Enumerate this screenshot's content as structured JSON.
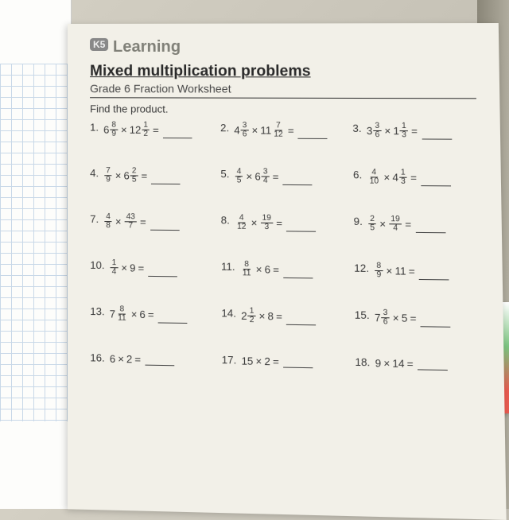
{
  "logo": {
    "badge": "K5",
    "text": "Learning"
  },
  "title": "Mixed multiplication problems",
  "subtitle": "Grade 6 Fraction Worksheet",
  "instruction": "Find the product.",
  "problems": [
    {
      "n": "1.",
      "a_whole": "6",
      "a_num": "8",
      "a_den": "9",
      "b_whole": "12",
      "b_num": "1",
      "b_den": "2"
    },
    {
      "n": "2.",
      "a_whole": "4",
      "a_num": "3",
      "a_den": "6",
      "b_whole": "11",
      "b_num": "7",
      "b_den": "12"
    },
    {
      "n": "3.",
      "a_whole": "3",
      "a_num": "3",
      "a_den": "6",
      "b_whole": "1",
      "b_num": "1",
      "b_den": "3"
    },
    {
      "n": "4.",
      "a_whole": "",
      "a_num": "7",
      "a_den": "9",
      "b_whole": "6",
      "b_num": "2",
      "b_den": "5"
    },
    {
      "n": "5.",
      "a_whole": "",
      "a_num": "4",
      "a_den": "5",
      "b_whole": "6",
      "b_num": "3",
      "b_den": "4"
    },
    {
      "n": "6.",
      "a_whole": "",
      "a_num": "4",
      "a_den": "10",
      "b_whole": "4",
      "b_num": "1",
      "b_den": "3"
    },
    {
      "n": "7.",
      "a_whole": "",
      "a_num": "4",
      "a_den": "8",
      "b_whole": "",
      "b_num": "43",
      "b_den": "7"
    },
    {
      "n": "8.",
      "a_whole": "",
      "a_num": "4",
      "a_den": "12",
      "b_whole": "",
      "b_num": "19",
      "b_den": "3"
    },
    {
      "n": "9.",
      "a_whole": "",
      "a_num": "2",
      "a_den": "5",
      "b_whole": "",
      "b_num": "19",
      "b_den": "4"
    },
    {
      "n": "10.",
      "a_whole": "",
      "a_num": "1",
      "a_den": "4",
      "b_whole": "9",
      "b_num": "",
      "b_den": ""
    },
    {
      "n": "11.",
      "a_whole": "",
      "a_num": "8",
      "a_den": "11",
      "b_whole": "6",
      "b_num": "",
      "b_den": ""
    },
    {
      "n": "12.",
      "a_whole": "",
      "a_num": "8",
      "a_den": "9",
      "b_whole": "11",
      "b_num": "",
      "b_den": ""
    },
    {
      "n": "13.",
      "a_whole": "7",
      "a_num": "8",
      "a_den": "11",
      "b_whole": "6",
      "b_num": "",
      "b_den": ""
    },
    {
      "n": "14.",
      "a_whole": "2",
      "a_num": "1",
      "a_den": "2",
      "b_whole": "8",
      "b_num": "",
      "b_den": ""
    },
    {
      "n": "15.",
      "a_whole": "7",
      "a_num": "3",
      "a_den": "6",
      "b_whole": "5",
      "b_num": "",
      "b_den": ""
    },
    {
      "n": "16.",
      "a_whole": "6",
      "a_num": "",
      "a_den": "",
      "b_whole": "2",
      "b_num": "",
      "b_den": ""
    },
    {
      "n": "17.",
      "a_whole": "15",
      "a_num": "",
      "a_den": "",
      "b_whole": "2",
      "b_num": "",
      "b_den": ""
    },
    {
      "n": "18.",
      "a_whole": "9",
      "a_num": "",
      "a_den": "",
      "b_whole": "14",
      "b_num": "",
      "b_den": ""
    }
  ],
  "colors": {
    "paper": "#f2f0e8",
    "text": "#3a3a3a",
    "grid": "#c8d8e8"
  }
}
